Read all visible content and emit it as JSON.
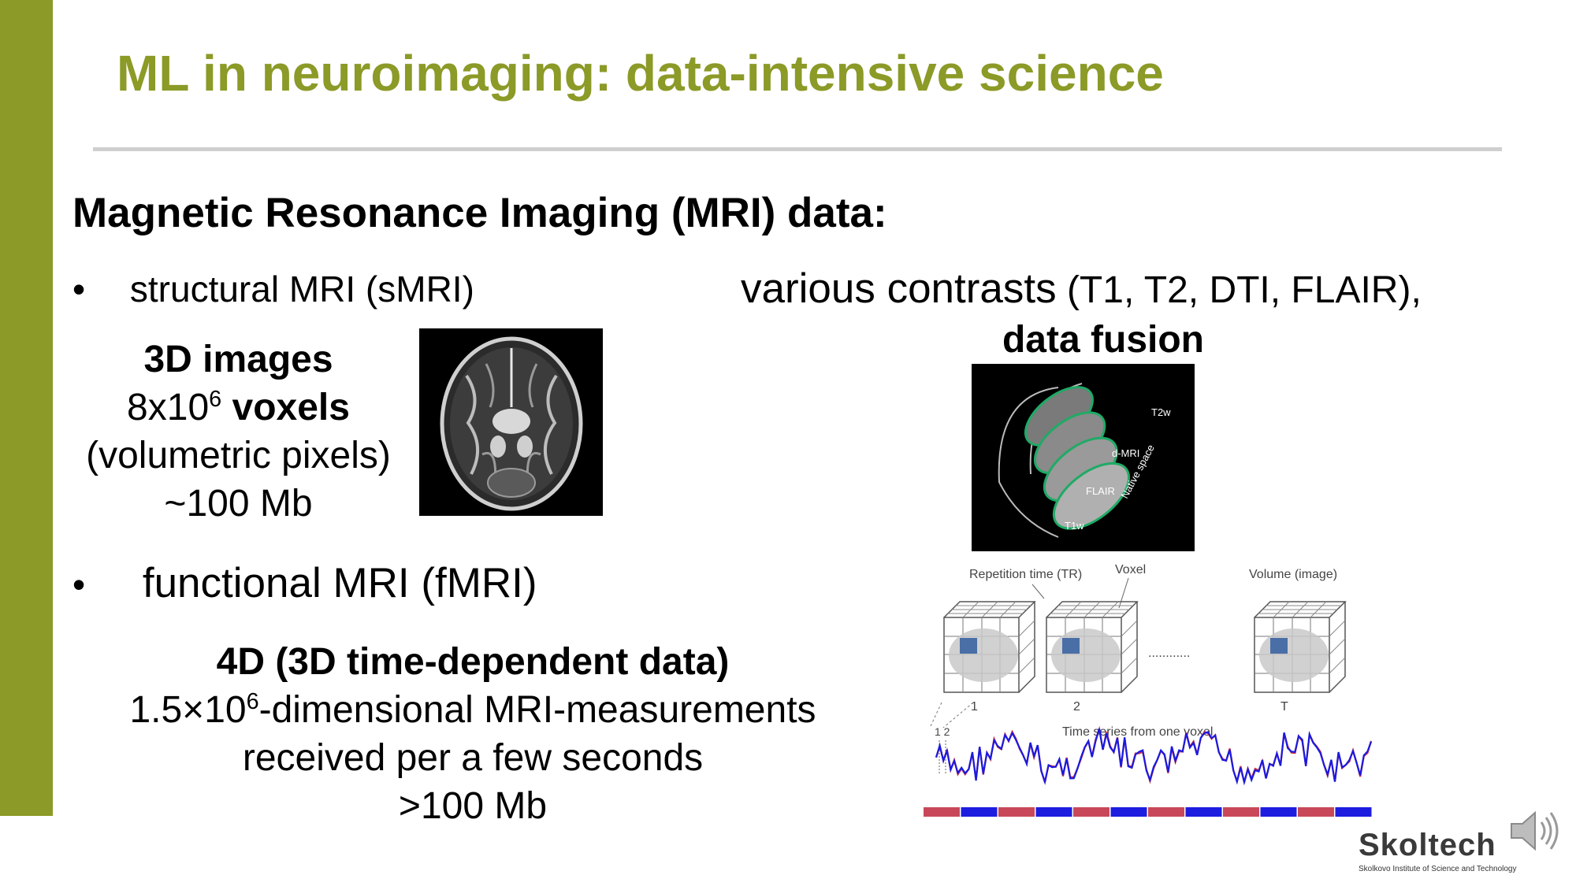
{
  "slide": {
    "title": "ML in neuroimaging: data-intensive science",
    "heading": "Magnetic Resonance Imaging (MRI) data:",
    "bullet_marker": "•",
    "smri": {
      "bullet": "structural MRI (sMRI)",
      "line1": "3D images",
      "line2_pre": "8x10",
      "line2_sup": "6",
      "line2_bold": " voxels",
      "line3": "(volumetric pixels)",
      "line4": "~100 Mb"
    },
    "contrasts": {
      "line1_big": "various contrasts",
      "line1_rest": " (T1, T2, DTI, FLAIR),",
      "line2": "data fusion"
    },
    "fusion_figure": {
      "labels": [
        "T2w",
        "d-MRI",
        "FLAIR",
        "T1w",
        "Native space"
      ]
    },
    "fmri": {
      "bullet": "functional MRI (fMRI)",
      "line1": "4D (3D time-dependent data)",
      "line2_pre": "1.5×10",
      "line2_sup": "6",
      "line2_post": "-dimensional MRI-measurements",
      "line3": "received per a few seconds",
      "line4": ">100 Mb"
    },
    "fmri_figure": {
      "label_tr": "Repetition time (TR)",
      "label_voxel": "Voxel",
      "label_volume": "Volume (image)",
      "dots": "............",
      "vol1": "1",
      "vol2": "2",
      "volT": "T",
      "ts_ticks": "1  2",
      "ts_label": "Time series from one voxel"
    },
    "logo": {
      "name": "Skoltech",
      "subtitle": "Skolkovo Institute of Science and Technology"
    },
    "colors": {
      "accent": "#8c9a27",
      "rule": "#cfcfcf",
      "signal": "#1a1adf",
      "block_red": "#c8485a",
      "block_blue": "#1d1de0"
    }
  }
}
